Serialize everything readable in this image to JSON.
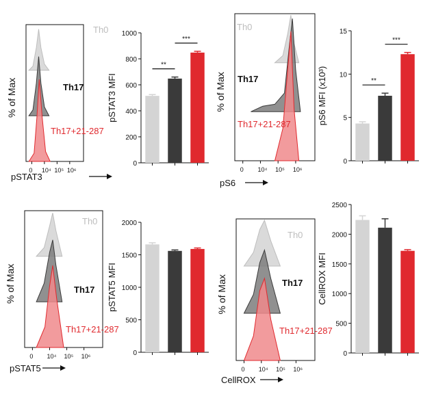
{
  "colors": {
    "th0": "#d4d4d4",
    "th17": "#3a3a3a",
    "th17_21_287": "#e0292e",
    "th17_21_287_hist": "#f08a8c",
    "axis": "#111111"
  },
  "chart_data": [
    {
      "type": "histogram",
      "ylabel": "% of Max",
      "xlabel": "pSTAT3",
      "x_ticks": [
        "0",
        "10⁴",
        "10⁵",
        "10⁶"
      ],
      "series": [
        {
          "name": "Th0",
          "color_key": "th0",
          "peak": 0.3
        },
        {
          "name": "Th17",
          "color_key": "th17",
          "peak": 0.35
        },
        {
          "name": "Th17+21-287",
          "color_key": "th17_21_287",
          "peak": 0.4
        }
      ]
    },
    {
      "type": "bar",
      "ylabel": "pSTAT3 MFI",
      "ylim": [
        0,
        1000
      ],
      "yticks": [
        "0",
        "200",
        "400",
        "600",
        "800",
        "1000"
      ],
      "categories": [
        "Th0",
        "Th17",
        "Th17+21-287"
      ],
      "values": [
        515,
        648,
        848
      ],
      "errors": [
        10,
        12,
        10
      ],
      "annotations": [
        {
          "from": 0,
          "to": 1,
          "label": "**"
        },
        {
          "from": 1,
          "to": 2,
          "label": "***"
        }
      ]
    },
    {
      "type": "histogram",
      "ylabel": "% of Max",
      "xlabel": "pS6",
      "x_ticks": [
        "0",
        "10⁴",
        "10⁵",
        "10⁶"
      ],
      "series": [
        {
          "name": "Th0",
          "color_key": "th0",
          "peak": 0.55
        },
        {
          "name": "Th17",
          "color_key": "th17",
          "peak": 0.65
        },
        {
          "name": "Th17+21-287",
          "color_key": "th17_21_287",
          "peak": 0.68
        }
      ]
    },
    {
      "type": "bar",
      "ylabel": "pS6 MFI (x10³)",
      "ylim": [
        0,
        15
      ],
      "yticks": [
        "0",
        "5",
        "10",
        "15"
      ],
      "categories": [
        "Th0",
        "Th17",
        "Th17+21-287"
      ],
      "values": [
        4.3,
        7.5,
        12.3
      ],
      "errors": [
        0.2,
        0.3,
        0.2
      ],
      "annotations": [
        {
          "from": 0,
          "to": 1,
          "label": "**"
        },
        {
          "from": 1,
          "to": 2,
          "label": "***"
        }
      ]
    },
    {
      "type": "histogram",
      "ylabel": "% of Max",
      "xlabel": "pSTAT5",
      "x_ticks": [
        "0",
        "10⁴",
        "10⁵",
        "10⁶"
      ],
      "series": [
        {
          "name": "Th0",
          "color_key": "th0",
          "peak": 0.35
        },
        {
          "name": "Th17",
          "color_key": "th17",
          "peak": 0.38
        },
        {
          "name": "Th17+21-287",
          "color_key": "th17_21_287",
          "peak": 0.4
        }
      ]
    },
    {
      "type": "bar",
      "ylabel": "pSTAT5 MFI",
      "ylim": [
        0,
        2000
      ],
      "yticks": [
        "0",
        "500",
        "1000",
        "1500",
        "2000"
      ],
      "categories": [
        "Th0",
        "Th17",
        "Th17+21-287"
      ],
      "values": [
        1660,
        1560,
        1590
      ],
      "errors": [
        25,
        15,
        15
      ],
      "annotations": []
    },
    {
      "type": "histogram",
      "ylabel": "% of Max",
      "xlabel": "CellROX",
      "x_ticks": [
        "0",
        "10⁴",
        "10⁵",
        "10⁶"
      ],
      "series": [
        {
          "name": "Th0",
          "color_key": "th0",
          "peak": 0.37
        },
        {
          "name": "Th17",
          "color_key": "th17",
          "peak": 0.37
        },
        {
          "name": "Th17+21-287",
          "color_key": "th17_21_287",
          "peak": 0.38
        }
      ]
    },
    {
      "type": "bar",
      "ylabel": "CellROX MFI",
      "ylim": [
        0,
        2500
      ],
      "yticks": [
        "0",
        "500",
        "1000",
        "1500",
        "2000",
        "2500"
      ],
      "categories": [
        "Th0",
        "Th17",
        "Th17+21-287"
      ],
      "values": [
        2240,
        2110,
        1720
      ],
      "errors": [
        70,
        150,
        20
      ],
      "annotations": []
    }
  ]
}
